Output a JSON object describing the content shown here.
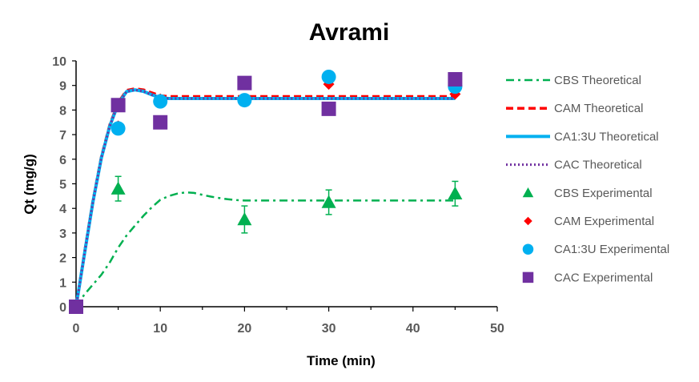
{
  "chart_data": {
    "type": "scatter",
    "title": "Avrami",
    "xlabel": "Time (min)",
    "ylabel": "Qt (mg/g)",
    "xlim": [
      0,
      50
    ],
    "ylim": [
      0,
      10
    ],
    "xticks": [
      "0",
      "10",
      "20",
      "30",
      "40",
      "50"
    ],
    "yticks": [
      "0",
      "1",
      "2",
      "3",
      "4",
      "5",
      "6",
      "7",
      "8",
      "9",
      "10"
    ],
    "grid": false,
    "legend_position": "right",
    "series": [
      {
        "name": "CBS Theoretical",
        "kind": "line",
        "style": "dashdot",
        "color": "#00B050",
        "x": [
          0,
          1,
          2,
          3,
          4,
          5,
          6,
          7,
          8,
          9,
          10,
          11,
          12,
          13,
          14,
          15,
          16,
          17,
          18,
          19,
          20,
          25,
          30,
          35,
          40,
          45
        ],
        "y": [
          0,
          0.5,
          0.9,
          1.3,
          1.8,
          2.4,
          2.9,
          3.3,
          3.7,
          4.05,
          4.35,
          4.5,
          4.6,
          4.65,
          4.63,
          4.55,
          4.48,
          4.42,
          4.37,
          4.34,
          4.32,
          4.32,
          4.32,
          4.32,
          4.32,
          4.32
        ]
      },
      {
        "name": "CAM Theoretical",
        "kind": "line",
        "style": "dashed",
        "color": "#FF0000",
        "x": [
          0,
          1,
          2,
          3,
          4,
          5,
          6,
          7,
          8,
          9,
          10,
          11,
          12,
          15,
          20,
          25,
          30,
          35,
          40,
          45
        ],
        "y": [
          0,
          2.2,
          4.3,
          6.1,
          7.4,
          8.3,
          8.8,
          8.87,
          8.82,
          8.7,
          8.58,
          8.55,
          8.55,
          8.55,
          8.55,
          8.55,
          8.55,
          8.55,
          8.55,
          8.55
        ]
      },
      {
        "name": "CA1:3U Theoretical",
        "kind": "line",
        "style": "solid",
        "color": "#00B0F0",
        "x": [
          0,
          1,
          2,
          3,
          4,
          5,
          6,
          7,
          8,
          9,
          10,
          11,
          12,
          15,
          20,
          25,
          30,
          35,
          40,
          45
        ],
        "y": [
          0,
          2.15,
          4.25,
          6.05,
          7.35,
          8.25,
          8.75,
          8.82,
          8.76,
          8.62,
          8.5,
          8.47,
          8.47,
          8.47,
          8.47,
          8.47,
          8.47,
          8.47,
          8.47,
          8.47
        ]
      },
      {
        "name": "CAC Theoretical",
        "kind": "line",
        "style": "dotted",
        "color": "#7030A0",
        "x": [
          0,
          1,
          2,
          3,
          4,
          5,
          6,
          7,
          8,
          9,
          10,
          11,
          12,
          15,
          20,
          25,
          30,
          35,
          40,
          45
        ],
        "y": [
          0,
          2.15,
          4.25,
          6.05,
          7.35,
          8.25,
          8.75,
          8.82,
          8.76,
          8.62,
          8.5,
          8.47,
          8.47,
          8.47,
          8.47,
          8.47,
          8.47,
          8.47,
          8.47,
          8.47
        ]
      },
      {
        "name": "CBS Experimental",
        "kind": "marker",
        "marker": "triangle",
        "color": "#00B050",
        "x": [
          0,
          5,
          20,
          30,
          45
        ],
        "y": [
          0,
          4.8,
          3.55,
          4.25,
          4.6
        ],
        "err": [
          0,
          0.5,
          0.55,
          0.5,
          0.5
        ]
      },
      {
        "name": "CAM Experimental",
        "kind": "marker",
        "marker": "diamond",
        "color": "#FF0000",
        "x": [
          0,
          5,
          10,
          20,
          30,
          45
        ],
        "y": [
          0,
          7.35,
          8.45,
          8.4,
          9.05,
          8.65
        ]
      },
      {
        "name": "CA1:3U Experimental",
        "kind": "marker",
        "marker": "circle",
        "color": "#00B0F0",
        "x": [
          0,
          5,
          10,
          20,
          30,
          45
        ],
        "y": [
          0,
          7.25,
          8.35,
          8.4,
          9.35,
          8.95
        ]
      },
      {
        "name": "CAC Experimental",
        "kind": "marker",
        "marker": "square",
        "color": "#7030A0",
        "x": [
          0,
          5,
          10,
          20,
          30,
          45
        ],
        "y": [
          0,
          8.2,
          7.5,
          9.1,
          8.05,
          9.25
        ]
      }
    ]
  }
}
